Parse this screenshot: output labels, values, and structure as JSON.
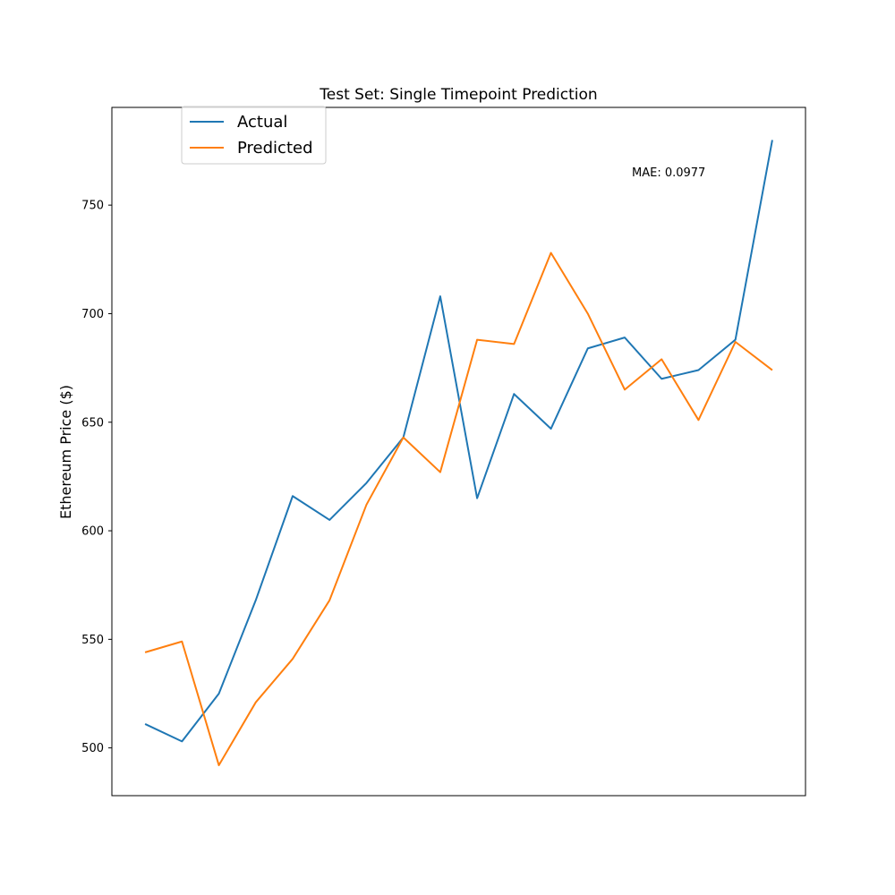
{
  "chart_data": {
    "type": "line",
    "title": "Test Set: Single Timepoint Prediction",
    "xlabel": "",
    "ylabel": "Ethereum Price ($)",
    "x": [
      0,
      1,
      2,
      3,
      4,
      5,
      6,
      7,
      8,
      9,
      10,
      11,
      12,
      13,
      14,
      15,
      16,
      17
    ],
    "xlim": [
      -0.9,
      17.9
    ],
    "ylim": [
      478,
      795
    ],
    "yticks": [
      500,
      550,
      600,
      650,
      700,
      750
    ],
    "grid": false,
    "legend": "upper-left",
    "annotation": "MAE: 0.0977",
    "series": [
      {
        "name": "Actual",
        "color": "#1f77b4",
        "values": [
          511,
          503,
          525,
          568,
          616,
          605,
          622,
          643,
          708,
          615,
          663,
          647,
          684,
          689,
          670,
          674,
          688,
          780
        ]
      },
      {
        "name": "Predicted",
        "color": "#ff7f0e",
        "values": [
          544,
          549,
          492,
          521,
          541,
          568,
          612,
          643,
          627,
          688,
          686,
          728,
          700,
          665,
          679,
          651,
          687,
          674
        ]
      }
    ]
  }
}
